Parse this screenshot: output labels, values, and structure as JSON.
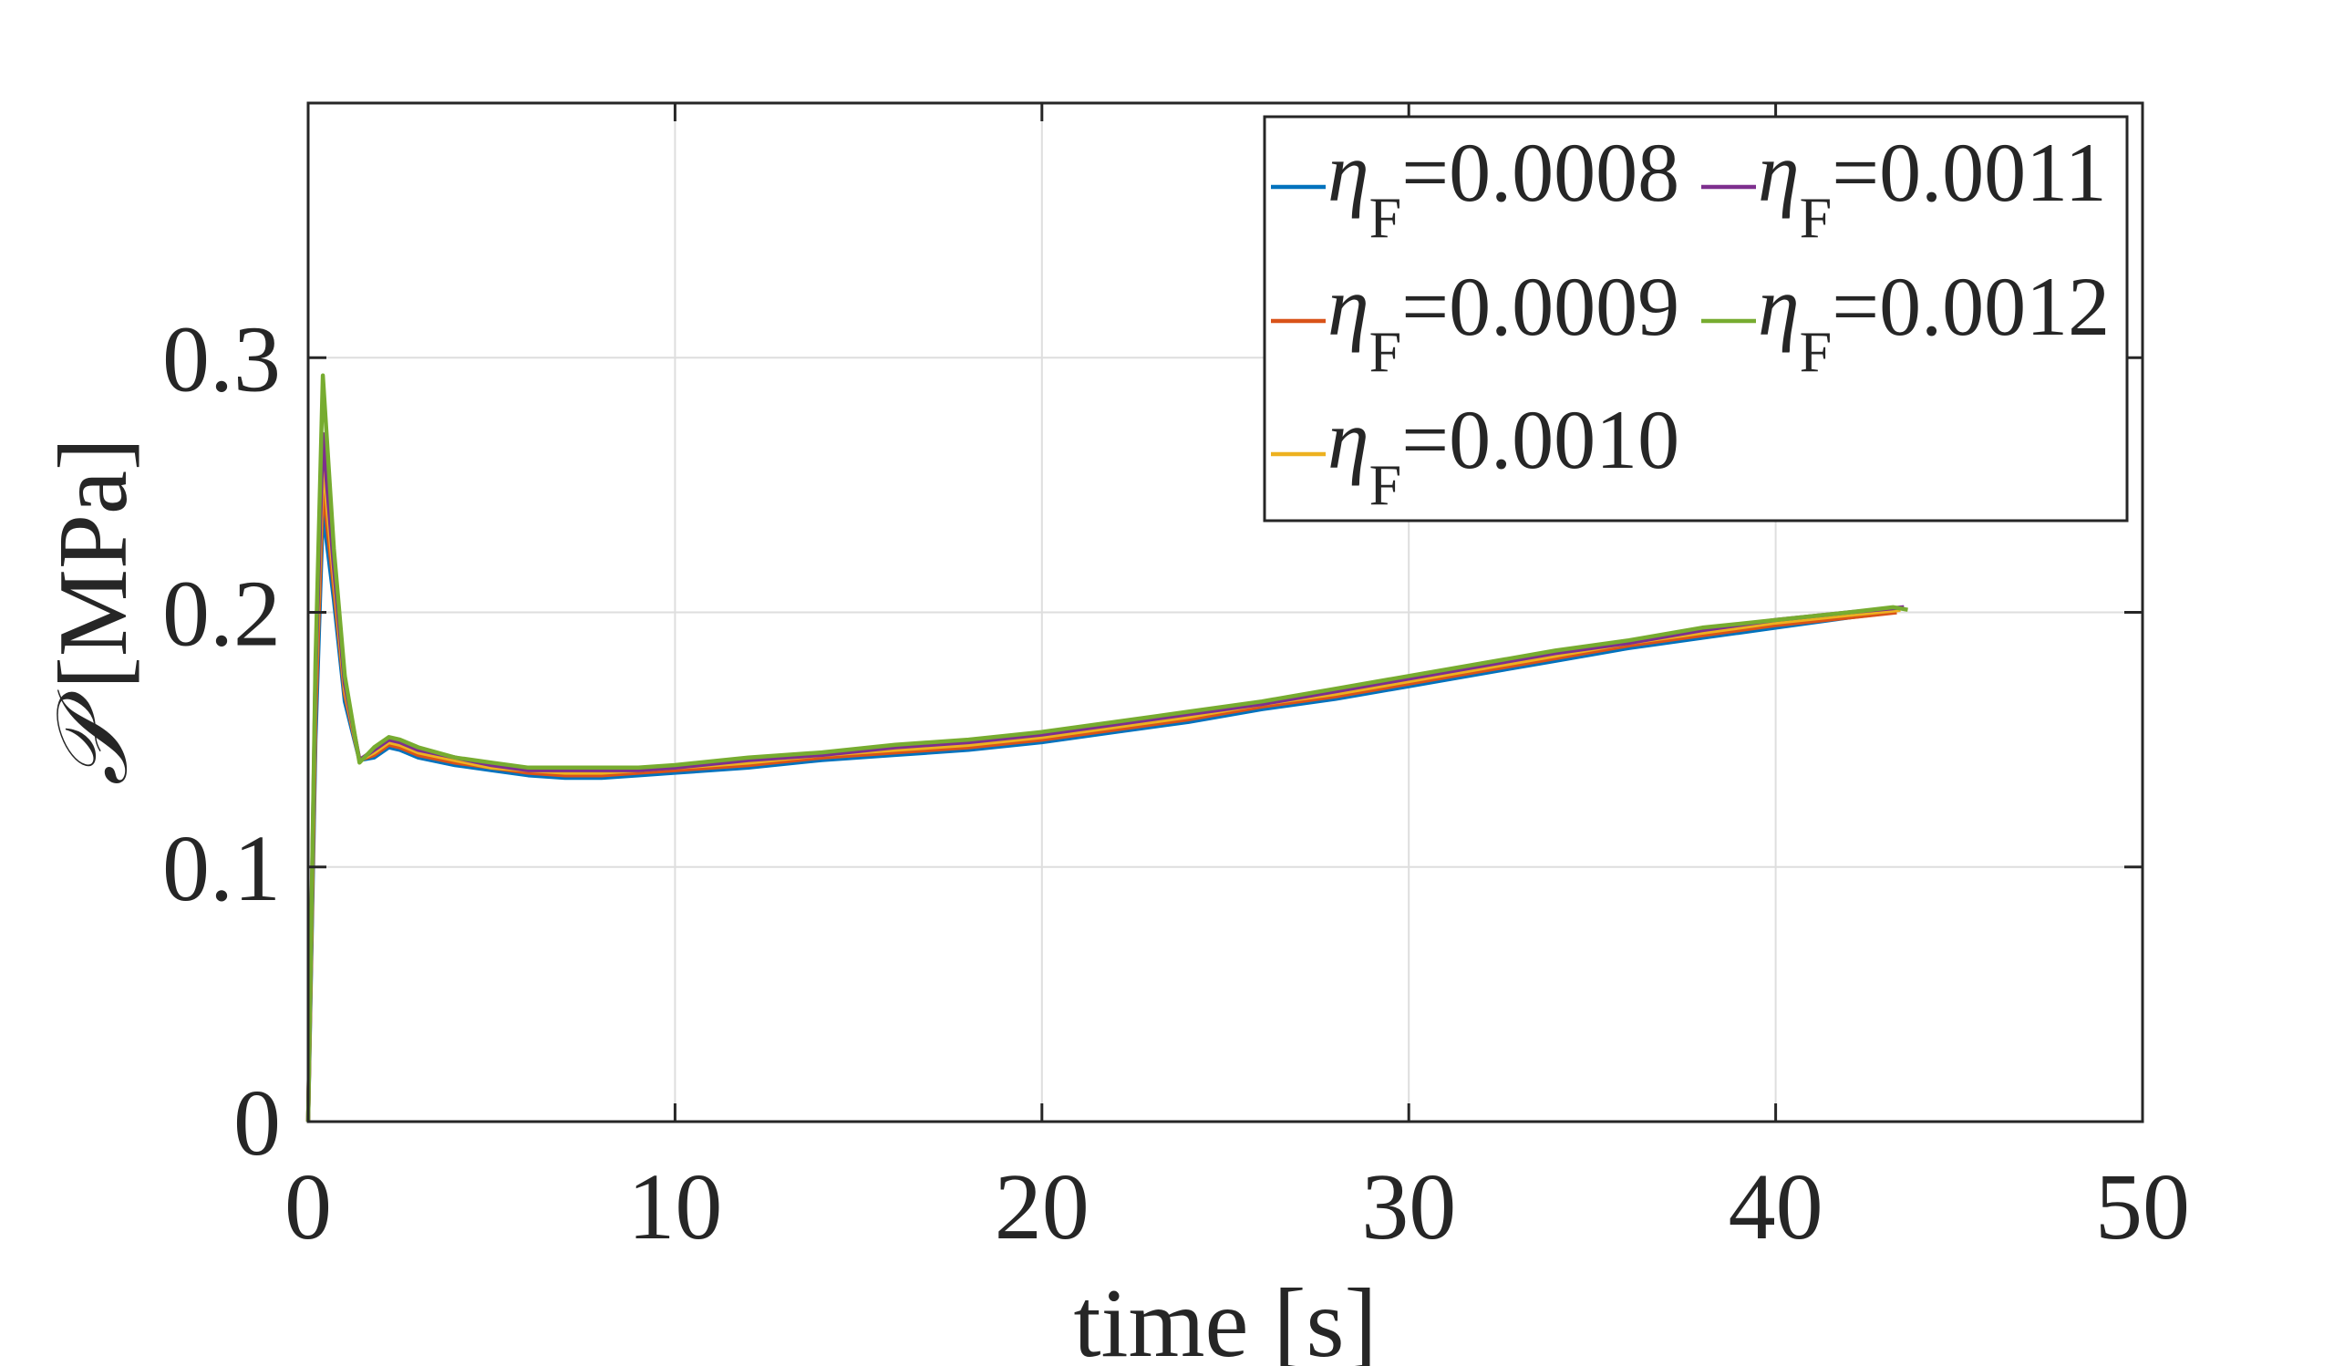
{
  "chart_data": {
    "type": "line",
    "xlabel": "time [s]",
    "ylabel": "[MPa]",
    "ylabel_symbol": "𝒫",
    "xlim": [
      0,
      50
    ],
    "ylim": [
      0,
      0.4
    ],
    "xticks": [
      0,
      10,
      20,
      30,
      40,
      50
    ],
    "xtick_labels": [
      "0",
      "10",
      "20",
      "30",
      "40",
      "50"
    ],
    "yticks": [
      0,
      0.1,
      0.2,
      0.3
    ],
    "ytick_labels": [
      "0",
      "0.1",
      "0.2",
      "0.3"
    ],
    "grid": true,
    "legend_position": "top-right",
    "legend_columns": 2,
    "series": [
      {
        "name": "η_F=0.0008",
        "legend_symbol": "η",
        "legend_sub": "F",
        "legend_value": "=0.0008",
        "color": "#0072BD",
        "points": [
          [
            0,
            0
          ],
          [
            0.2,
            0.15
          ],
          [
            0.4,
            0.24
          ],
          [
            0.7,
            0.205
          ],
          [
            1.0,
            0.165
          ],
          [
            1.4,
            0.142
          ],
          [
            1.8,
            0.143
          ],
          [
            2.2,
            0.147
          ],
          [
            2.5,
            0.146
          ],
          [
            3,
            0.143
          ],
          [
            4,
            0.14
          ],
          [
            5,
            0.138
          ],
          [
            6,
            0.136
          ],
          [
            7,
            0.135
          ],
          [
            8,
            0.135
          ],
          [
            9,
            0.136
          ],
          [
            10,
            0.137
          ],
          [
            12,
            0.139
          ],
          [
            14,
            0.142
          ],
          [
            16,
            0.144
          ],
          [
            18,
            0.146
          ],
          [
            20,
            0.149
          ],
          [
            22,
            0.153
          ],
          [
            24,
            0.157
          ],
          [
            26,
            0.162
          ],
          [
            28,
            0.166
          ],
          [
            30,
            0.171
          ],
          [
            32,
            0.176
          ],
          [
            34,
            0.181
          ],
          [
            36,
            0.186
          ],
          [
            38,
            0.19
          ],
          [
            40,
            0.194
          ],
          [
            42,
            0.198
          ],
          [
            43.2,
            0.2
          ]
        ]
      },
      {
        "name": "η_F=0.0009",
        "legend_symbol": "η",
        "legend_sub": "F",
        "legend_value": "=0.0009",
        "color": "#D95319",
        "points": [
          [
            0,
            0
          ],
          [
            0.2,
            0.16
          ],
          [
            0.4,
            0.25
          ],
          [
            0.7,
            0.21
          ],
          [
            1.0,
            0.168
          ],
          [
            1.4,
            0.142
          ],
          [
            1.8,
            0.144
          ],
          [
            2.2,
            0.148
          ],
          [
            2.5,
            0.147
          ],
          [
            3,
            0.144
          ],
          [
            4,
            0.141
          ],
          [
            5,
            0.139
          ],
          [
            6,
            0.137
          ],
          [
            7,
            0.136
          ],
          [
            8,
            0.136
          ],
          [
            9,
            0.137
          ],
          [
            10,
            0.138
          ],
          [
            12,
            0.14
          ],
          [
            14,
            0.143
          ],
          [
            16,
            0.145
          ],
          [
            18,
            0.147
          ],
          [
            20,
            0.15
          ],
          [
            22,
            0.154
          ],
          [
            24,
            0.158
          ],
          [
            26,
            0.163
          ],
          [
            28,
            0.167
          ],
          [
            30,
            0.172
          ],
          [
            32,
            0.177
          ],
          [
            34,
            0.182
          ],
          [
            36,
            0.187
          ],
          [
            38,
            0.191
          ],
          [
            40,
            0.195
          ],
          [
            42,
            0.198
          ],
          [
            43.3,
            0.2
          ]
        ]
      },
      {
        "name": "η_F=0.0010",
        "legend_symbol": "η",
        "legend_sub": "F",
        "legend_value": "=0.0010",
        "color": "#EDB120",
        "points": [
          [
            0,
            0
          ],
          [
            0.2,
            0.17
          ],
          [
            0.4,
            0.26
          ],
          [
            0.7,
            0.214
          ],
          [
            1.0,
            0.17
          ],
          [
            1.4,
            0.142
          ],
          [
            1.8,
            0.145
          ],
          [
            2.2,
            0.149
          ],
          [
            2.5,
            0.148
          ],
          [
            3,
            0.145
          ],
          [
            4,
            0.142
          ],
          [
            5,
            0.139
          ],
          [
            6,
            0.138
          ],
          [
            7,
            0.137
          ],
          [
            8,
            0.137
          ],
          [
            9,
            0.138
          ],
          [
            10,
            0.139
          ],
          [
            12,
            0.141
          ],
          [
            14,
            0.144
          ],
          [
            16,
            0.146
          ],
          [
            18,
            0.148
          ],
          [
            20,
            0.151
          ],
          [
            22,
            0.155
          ],
          [
            24,
            0.159
          ],
          [
            26,
            0.164
          ],
          [
            28,
            0.168
          ],
          [
            30,
            0.173
          ],
          [
            32,
            0.178
          ],
          [
            34,
            0.183
          ],
          [
            36,
            0.188
          ],
          [
            38,
            0.192
          ],
          [
            40,
            0.196
          ],
          [
            42,
            0.199
          ],
          [
            43.4,
            0.201
          ]
        ]
      },
      {
        "name": "η_F=0.0011",
        "legend_symbol": "η",
        "legend_sub": "F",
        "legend_value": "=0.0011",
        "color": "#7E2F8E",
        "points": [
          [
            0,
            0
          ],
          [
            0.2,
            0.175
          ],
          [
            0.4,
            0.27
          ],
          [
            0.7,
            0.218
          ],
          [
            1.0,
            0.172
          ],
          [
            1.4,
            0.142
          ],
          [
            1.8,
            0.146
          ],
          [
            2.2,
            0.15
          ],
          [
            2.5,
            0.149
          ],
          [
            3,
            0.146
          ],
          [
            4,
            0.143
          ],
          [
            5,
            0.14
          ],
          [
            6,
            0.138
          ],
          [
            7,
            0.138
          ],
          [
            8,
            0.138
          ],
          [
            9,
            0.138
          ],
          [
            10,
            0.139
          ],
          [
            12,
            0.142
          ],
          [
            14,
            0.144
          ],
          [
            16,
            0.147
          ],
          [
            18,
            0.149
          ],
          [
            20,
            0.152
          ],
          [
            22,
            0.156
          ],
          [
            24,
            0.16
          ],
          [
            26,
            0.164
          ],
          [
            28,
            0.169
          ],
          [
            30,
            0.174
          ],
          [
            32,
            0.179
          ],
          [
            34,
            0.184
          ],
          [
            36,
            0.188
          ],
          [
            38,
            0.193
          ],
          [
            40,
            0.197
          ],
          [
            42,
            0.2
          ],
          [
            43.5,
            0.202
          ]
        ]
      },
      {
        "name": "η_F=0.0012",
        "legend_symbol": "η",
        "legend_sub": "F",
        "legend_value": "=0.0012",
        "color": "#77AC30",
        "points": [
          [
            0,
            0
          ],
          [
            0.2,
            0.18
          ],
          [
            0.4,
            0.293
          ],
          [
            0.7,
            0.225
          ],
          [
            1.0,
            0.175
          ],
          [
            1.4,
            0.141
          ],
          [
            1.8,
            0.147
          ],
          [
            2.2,
            0.151
          ],
          [
            2.5,
            0.15
          ],
          [
            3,
            0.147
          ],
          [
            4,
            0.143
          ],
          [
            5,
            0.141
          ],
          [
            6,
            0.139
          ],
          [
            7,
            0.139
          ],
          [
            8,
            0.139
          ],
          [
            9,
            0.139
          ],
          [
            10,
            0.14
          ],
          [
            12,
            0.143
          ],
          [
            14,
            0.145
          ],
          [
            16,
            0.148
          ],
          [
            18,
            0.15
          ],
          [
            20,
            0.153
          ],
          [
            22,
            0.157
          ],
          [
            24,
            0.161
          ],
          [
            26,
            0.165
          ],
          [
            28,
            0.17
          ],
          [
            30,
            0.175
          ],
          [
            32,
            0.18
          ],
          [
            34,
            0.185
          ],
          [
            36,
            0.189
          ],
          [
            38,
            0.194
          ],
          [
            40,
            0.197
          ],
          [
            42,
            0.2
          ],
          [
            43.2,
            0.202
          ],
          [
            43.6,
            0.201
          ]
        ]
      }
    ]
  }
}
